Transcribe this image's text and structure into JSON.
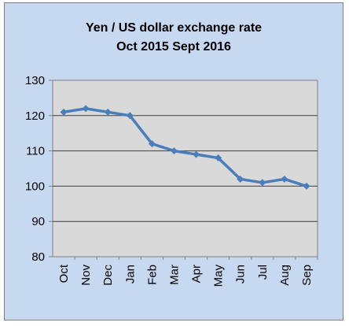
{
  "chart_data": {
    "type": "line",
    "title_line1": "Yen / US dollar exchange rate",
    "title_line2": "Oct 2015 Sept 2016",
    "categories": [
      "Oct",
      "Nov",
      "Dec",
      "Jan",
      "Feb",
      "Mar",
      "Apr",
      "May",
      "Jun",
      "Jul",
      "Aug",
      "Sep"
    ],
    "series": [
      {
        "values": [
          121,
          122,
          121,
          120,
          112,
          110,
          109,
          108,
          102,
          101,
          102,
          100
        ]
      }
    ],
    "ylim": [
      80,
      130
    ],
    "yticks": [
      80,
      90,
      100,
      110,
      120,
      130
    ],
    "grid": true,
    "legend": "none",
    "colors": {
      "chart_background": "#c6d9f1",
      "plot_background": "#d9d9d9",
      "line": "#4a7ebb",
      "gridline": "#404040"
    }
  }
}
